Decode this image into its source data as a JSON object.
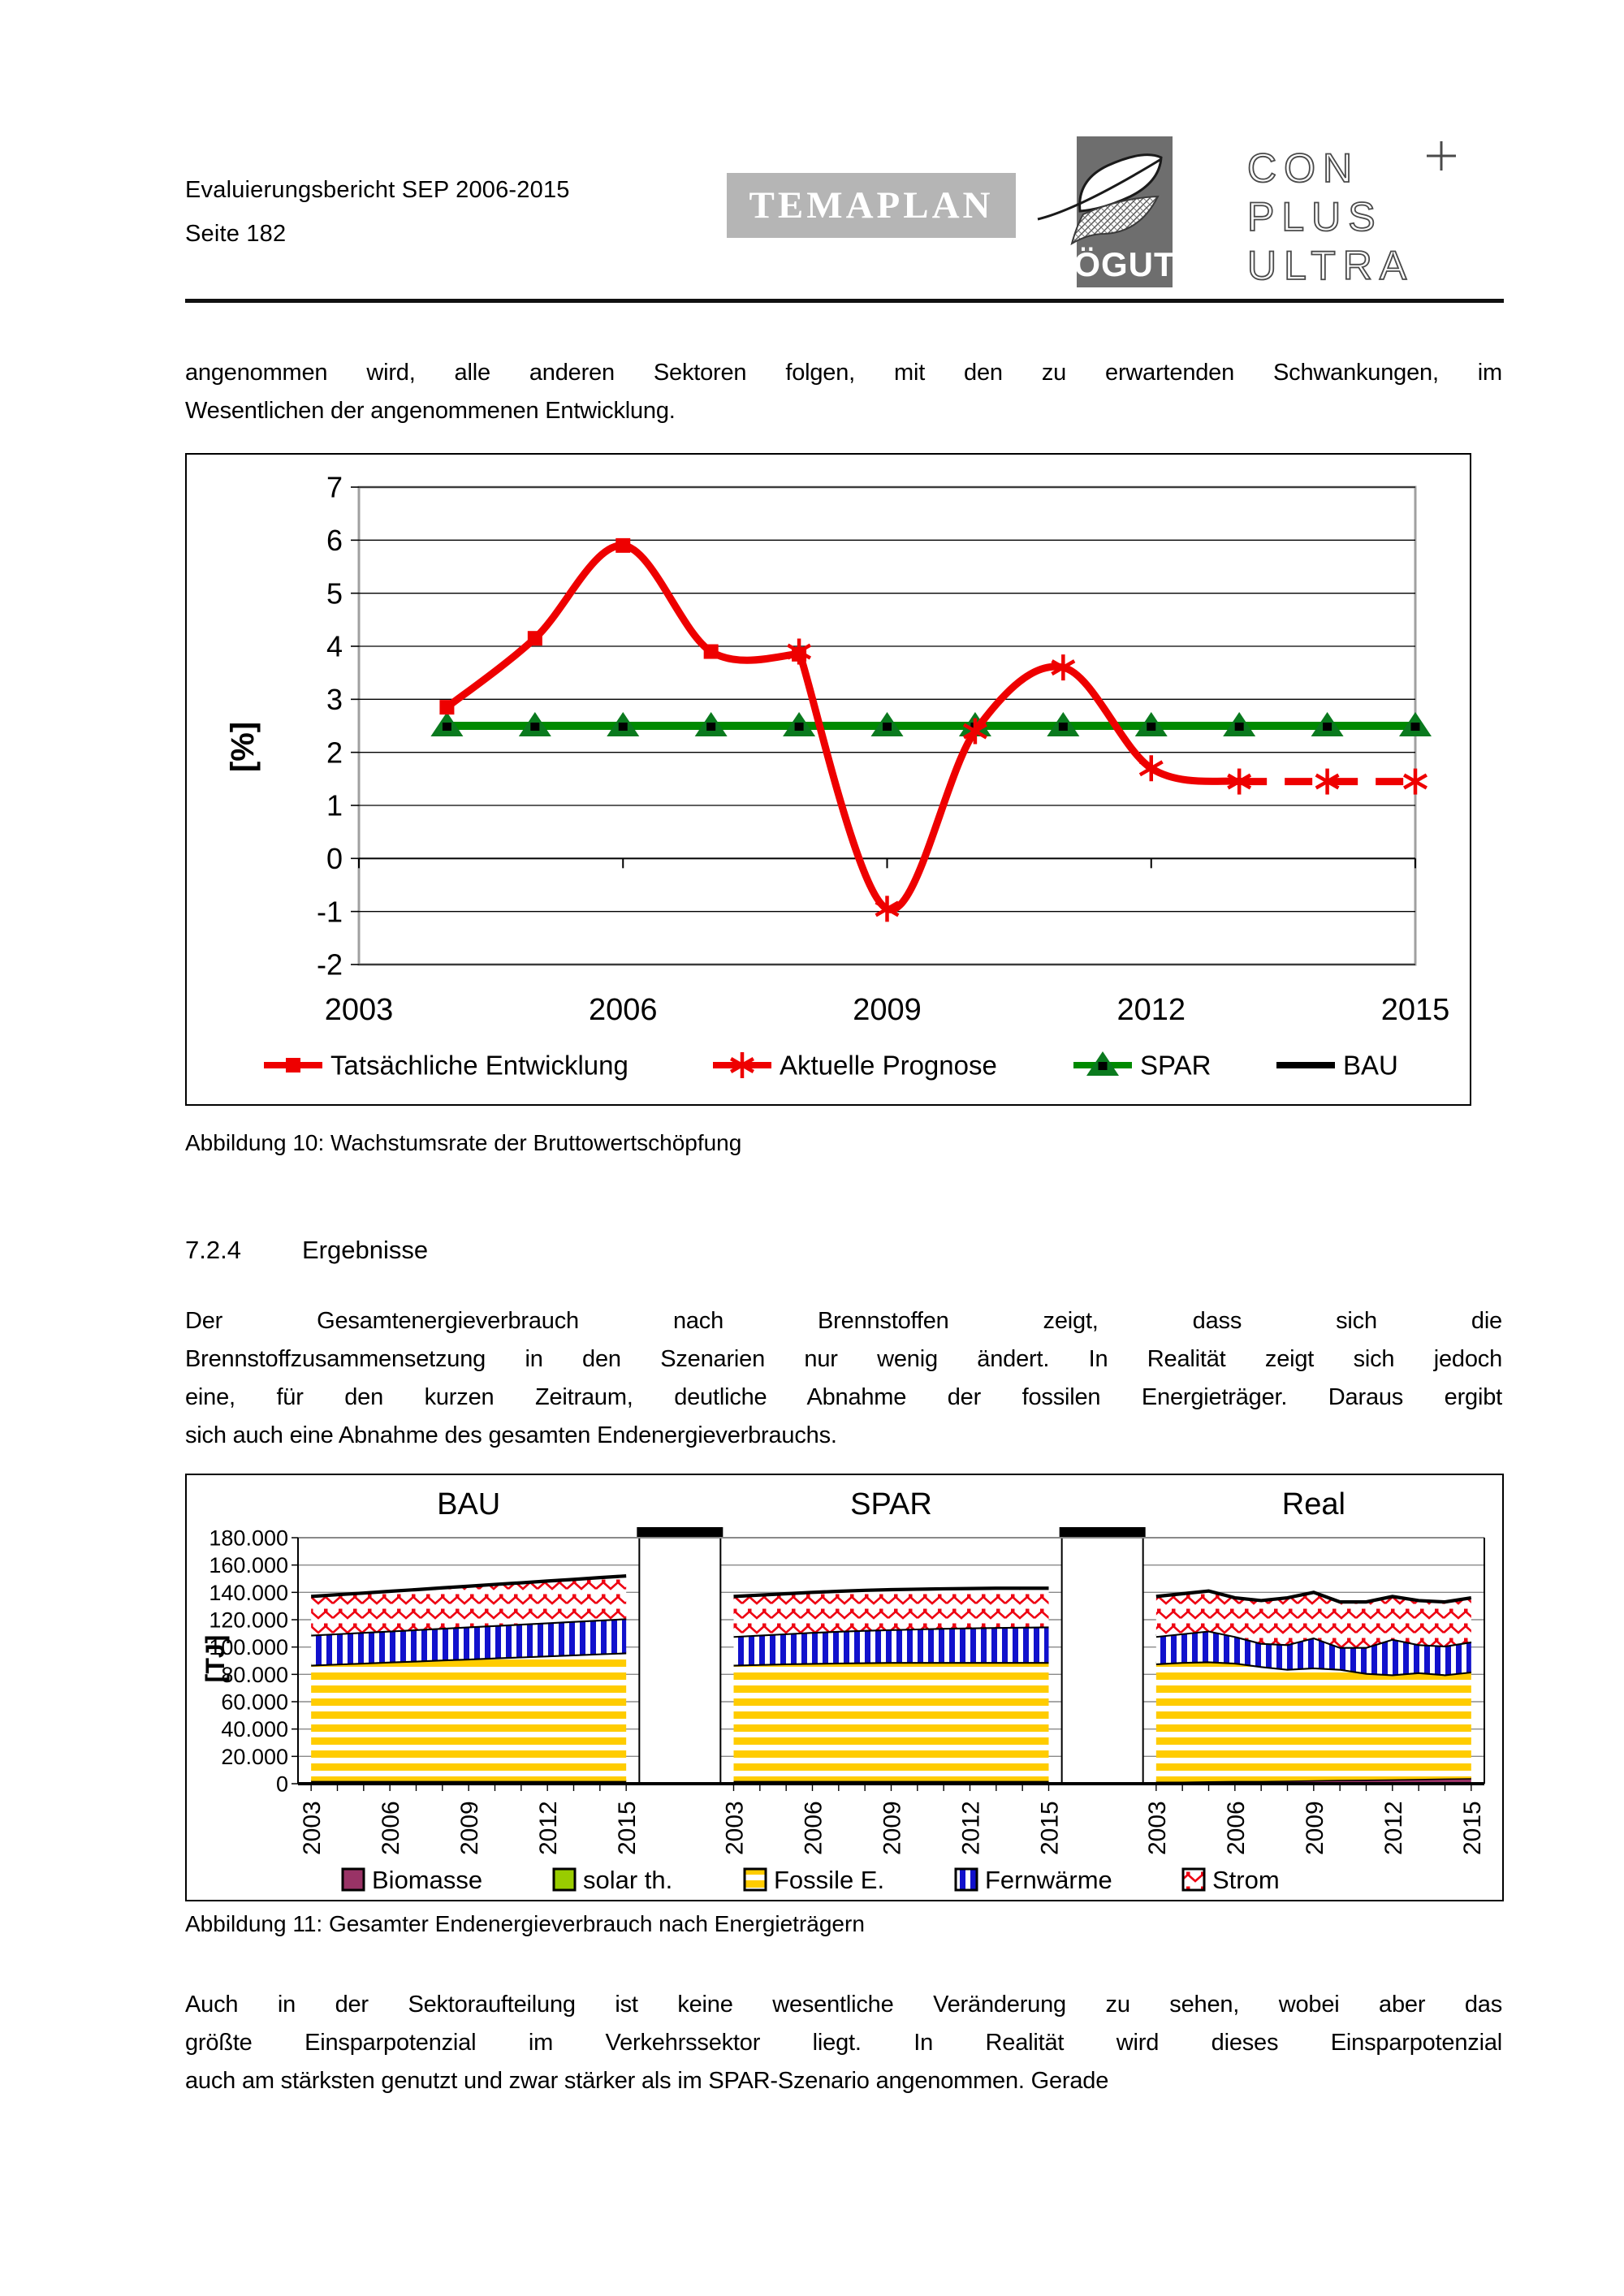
{
  "header": {
    "report_title": "Evaluierungsbericht SEP 2006-2015",
    "page_label": "Seite 182",
    "temaplan": "TEMAPLAN",
    "ogut": "ÖGUT",
    "cpu_lines": [
      "CON",
      "PLUS",
      "ULTRA"
    ]
  },
  "para1": {
    "lines": [
      "angenommen wird, alle anderen Sektoren folgen, mit den zu erwartenden Schwankungen, im",
      "Wesentlichen der angenommenen Entwicklung."
    ]
  },
  "section": {
    "number": "7.2.4",
    "title": "Ergebnisse"
  },
  "para2": {
    "lines": [
      "Der Gesamtenergieverbrauch nach Brennstoffen zeigt, dass sich die",
      "Brennstoffzusammensetzung in den Szenarien nur wenig ändert. In Realität zeigt sich jedoch",
      "eine, für den kurzen Zeitraum, deutliche Abnahme der fossilen Energieträger. Daraus ergibt",
      "sich auch eine Abnahme des gesamten Endenergieverbrauchs."
    ]
  },
  "para3": {
    "lines": [
      "Auch in der Sektoraufteilung ist keine wesentliche Veränderung zu sehen, wobei aber das",
      "größte Einsparpotenzial im Verkehrssektor liegt. In Realität wird dieses Einsparpotenzial",
      "auch am stärksten genutzt und zwar stärker als im SPAR-Szenario angenommen. Gerade"
    ]
  },
  "figures": {
    "fig10_caption": "Abbildung 10: Wachstumsrate der Bruttowertschöpfung",
    "fig11_caption": "Abbildung 11: Gesamter Endenergieverbrauch nach Energieträgern"
  },
  "chart_data": [
    {
      "type": "line",
      "title": "Wachstumsrate der Bruttowertschöpfung",
      "ylabel": "[%]",
      "ylim": [
        -2,
        7
      ],
      "yticks": [
        7,
        6,
        5,
        4,
        3,
        2,
        1,
        0,
        -1,
        -2
      ],
      "xlim": [
        2003,
        2015
      ],
      "xticks": [
        2003,
        2006,
        2009,
        2012,
        2015
      ],
      "grid": true,
      "legend_position": "bottom",
      "series": [
        {
          "name": "Tatsächliche Entwicklung",
          "color": "#ee0000",
          "marker": "square",
          "width": 9,
          "style": "smooth",
          "x": [
            2004,
            2005,
            2006,
            2007,
            2008
          ],
          "values": [
            2.85,
            4.15,
            5.9,
            3.9,
            3.85
          ]
        },
        {
          "name": "Aktuelle Prognose",
          "color": "#ee0000",
          "marker": "asterisk",
          "width": 9,
          "style": "smooth",
          "dash_from": 2013,
          "x": [
            2008,
            2009,
            2010,
            2011,
            2012,
            2013,
            2014,
            2015
          ],
          "values": [
            3.9,
            -0.95,
            2.4,
            3.6,
            1.7,
            1.45,
            1.45,
            1.45
          ]
        },
        {
          "name": "SPAR",
          "color": "#008a00",
          "marker": "triangle",
          "width": 10,
          "style": "line",
          "x": [
            2004,
            2005,
            2006,
            2007,
            2008,
            2009,
            2010,
            2011,
            2012,
            2013,
            2014,
            2015
          ],
          "values": [
            2.5,
            2.5,
            2.5,
            2.5,
            2.5,
            2.5,
            2.5,
            2.5,
            2.5,
            2.5,
            2.5,
            2.5
          ]
        },
        {
          "name": "BAU",
          "color": "#000000",
          "marker": "none",
          "width": 5,
          "style": "line",
          "x": [
            2004,
            2015
          ],
          "values": [
            2.5,
            2.5
          ]
        }
      ]
    },
    {
      "type": "area",
      "title": "Gesamter Endenergieverbrauch nach Energieträgern",
      "ylabel": "[TJ]",
      "ylim": [
        0,
        180000
      ],
      "ytick_step": 20000,
      "ytick_labels": [
        "180.000",
        "160.000",
        "140.000",
        "120.000",
        "100.000",
        "80.000",
        "60.000",
        "40.000",
        "20.000",
        "0"
      ],
      "xtick_labels": [
        "2003",
        "2006",
        "2009",
        "2012",
        "2015"
      ],
      "years": [
        2003,
        2004,
        2005,
        2006,
        2007,
        2008,
        2009,
        2010,
        2011,
        2012,
        2013,
        2014,
        2015
      ],
      "panels": [
        {
          "title": "BAU",
          "layers": [
            {
              "name": "Biomasse",
              "fill": "solid",
              "color": "#993366",
              "top": [
                2000,
                2000,
                2000,
                2000,
                2000,
                2000,
                2000,
                2000,
                2000,
                2000,
                2000,
                2000,
                2000
              ]
            },
            {
              "name": "Fossile E.",
              "fill": "hstripe",
              "top": [
                87000,
                87800,
                88500,
                89300,
                90000,
                90800,
                91500,
                92300,
                93000,
                93800,
                94500,
                95300,
                96000
              ]
            },
            {
              "name": "Fernwärme",
              "fill": "vstripe",
              "top": [
                109000,
                110000,
                111000,
                112000,
                113000,
                114000,
                115000,
                116000,
                117000,
                118000,
                119000,
                120000,
                121000
              ]
            },
            {
              "name": "Strom",
              "fill": "zigzag",
              "top": [
                137000,
                138300,
                139500,
                140800,
                142000,
                143300,
                144500,
                145800,
                147000,
                148300,
                149500,
                150800,
                152000
              ]
            }
          ]
        },
        {
          "title": "SPAR",
          "layers": [
            {
              "name": "Biomasse",
              "fill": "solid",
              "color": "#993366",
              "top": [
                2000,
                2000,
                2000,
                2000,
                2000,
                2000,
                2000,
                2000,
                2000,
                2000,
                2000,
                2000,
                2000
              ]
            },
            {
              "name": "Fossile E.",
              "fill": "hstripe",
              "top": [
                87000,
                87500,
                88000,
                88300,
                88600,
                88800,
                89000,
                89000,
                89000,
                89000,
                89000,
                89000,
                89000
              ]
            },
            {
              "name": "Fernwärme",
              "fill": "vstripe",
              "top": [
                108000,
                109000,
                110000,
                111000,
                111800,
                112500,
                113000,
                113500,
                114000,
                114300,
                114600,
                114800,
                115000
              ]
            },
            {
              "name": "Strom",
              "fill": "zigzag",
              "top": [
                137000,
                138000,
                139000,
                140000,
                140800,
                141500,
                142000,
                142300,
                142600,
                142800,
                143000,
                143000,
                143000
              ]
            }
          ]
        },
        {
          "title": "Real",
          "layers": [
            {
              "name": "Biomasse",
              "fill": "solid",
              "color": "#993366",
              "top": [
                1500,
                1500,
                1800,
                2000,
                2000,
                2200,
                2500,
                2800,
                3000,
                3200,
                3500,
                3800,
                4000
              ]
            },
            {
              "name": "Fossile E.",
              "fill": "hstripe",
              "top": [
                88000,
                89000,
                89500,
                88500,
                86000,
                84000,
                85000,
                84000,
                81000,
                80000,
                81500,
                80000,
                82000
              ]
            },
            {
              "name": "Fernwärme",
              "fill": "vstripe",
              "top": [
                108000,
                110000,
                112000,
                108000,
                103000,
                102000,
                107000,
                100000,
                100000,
                106000,
                102000,
                101000,
                104000
              ]
            },
            {
              "name": "Strom",
              "fill": "zigzag",
              "top": [
                137000,
                139000,
                141000,
                136000,
                134000,
                136000,
                140000,
                133000,
                133000,
                137000,
                134000,
                133000,
                136000
              ]
            }
          ]
        }
      ],
      "legend": [
        {
          "label": "Biomasse",
          "fill": "solid",
          "color": "#993366"
        },
        {
          "label": "solar th.",
          "fill": "solid",
          "color": "#99cc00"
        },
        {
          "label": "Fossile E.",
          "fill": "hstripe",
          "color": "#ffcc00"
        },
        {
          "label": "Fernwärme",
          "fill": "vstripe",
          "color": "#1111cc"
        },
        {
          "label": "Strom",
          "fill": "zigzag",
          "color": "#ee0011"
        }
      ]
    }
  ]
}
